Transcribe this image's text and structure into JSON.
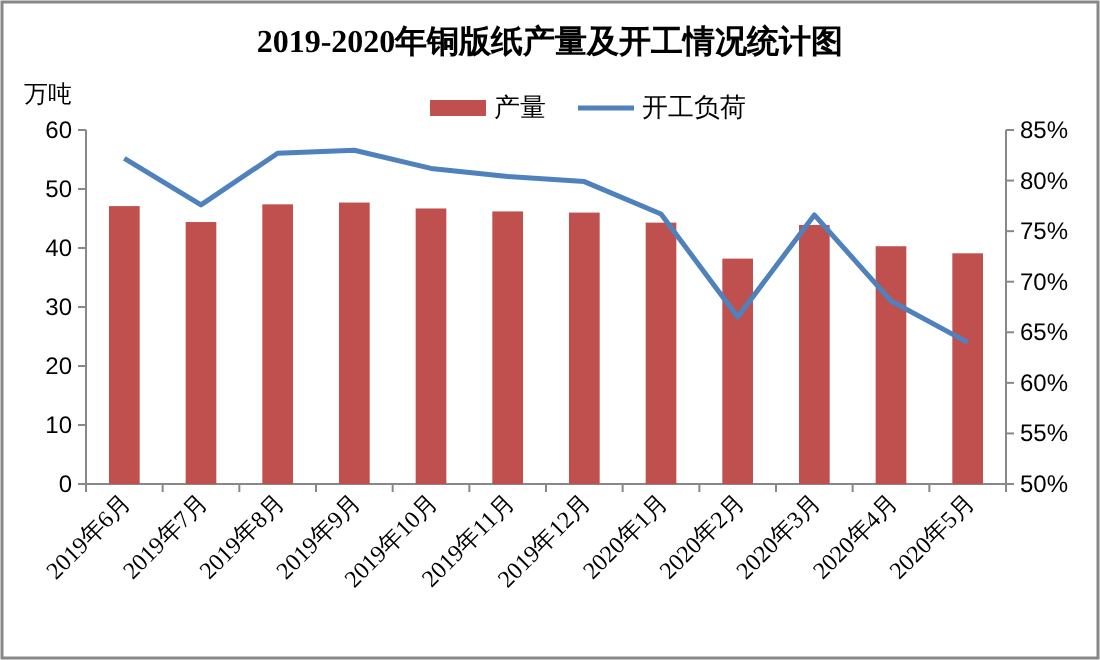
{
  "chart_data": {
    "type": "bar",
    "title": "2019-2020年铜版纸产量及开工情况统计图",
    "ylabel": "万吨",
    "categories": [
      "2019年6月",
      "2019年7月",
      "2019年8月",
      "2019年9月",
      "2019年10月",
      "2019年11月",
      "2019年12月",
      "2020年1月",
      "2020年2月",
      "2020年3月",
      "2020年4月",
      "2020年5月"
    ],
    "series": [
      {
        "name": "产量",
        "color": "#c0504d",
        "values": [
          47.1,
          44.4,
          47.4,
          47.7,
          46.7,
          46.2,
          46.0,
          44.3,
          38.2,
          43.9,
          40.3,
          39.1
        ]
      },
      {
        "name": "开工负荷",
        "type": "line",
        "axis": "y2",
        "color": "#4f81bd",
        "values": [
          82.2,
          77.6,
          82.7,
          83.0,
          81.2,
          80.4,
          79.9,
          76.7,
          66.5,
          76.6,
          68.1,
          64.0
        ]
      }
    ],
    "ylim": [
      0,
      60
    ],
    "yticks": [
      0,
      10,
      20,
      30,
      40,
      50,
      60
    ],
    "y2lim": [
      50,
      85
    ],
    "y2ticks": [
      {
        "value": 50,
        "label": "50%"
      },
      {
        "value": 55,
        "label": "55%"
      },
      {
        "value": 60,
        "label": "60%"
      },
      {
        "value": 65,
        "label": "65%"
      },
      {
        "value": 70,
        "label": "70%"
      },
      {
        "value": 75,
        "label": "75%"
      },
      {
        "value": 80,
        "label": "80%"
      },
      {
        "value": 85,
        "label": "85%"
      }
    ],
    "legend": "top",
    "grid": false
  }
}
